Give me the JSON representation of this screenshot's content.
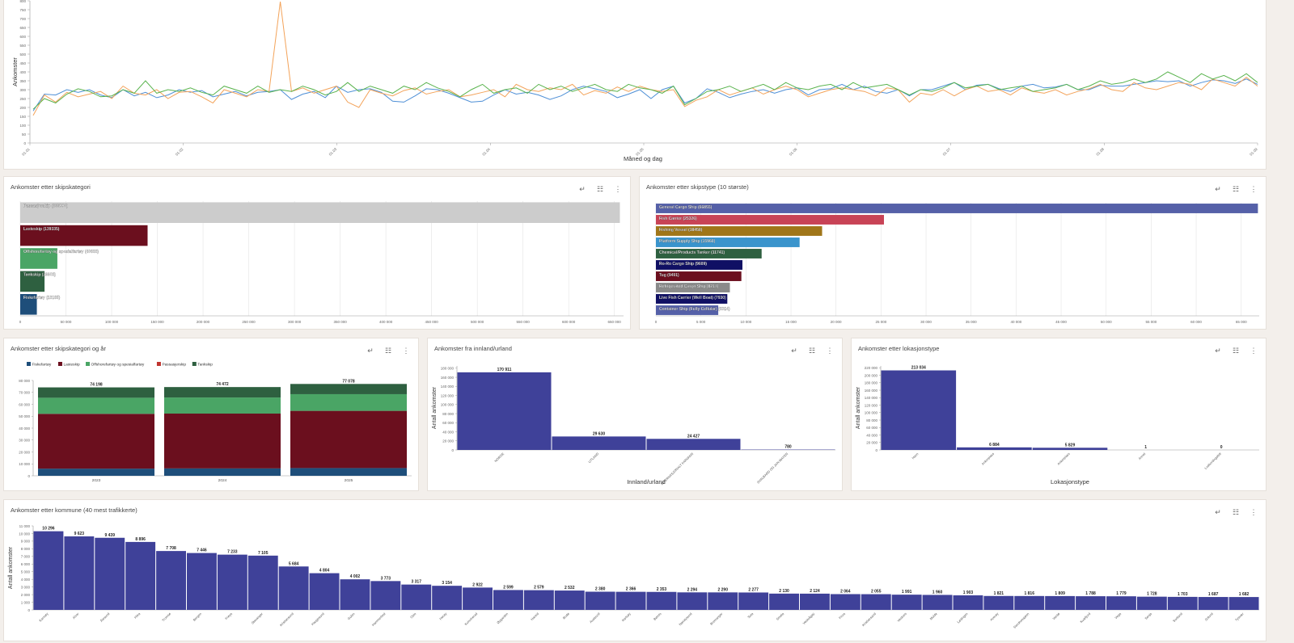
{
  "icons": {
    "drill_up": "↵",
    "list": "☷",
    "more": "⋮"
  },
  "timeseries": {
    "ylabel": "Ankomster",
    "xlabel": "Måned og dag",
    "yticks": [
      0,
      50,
      100,
      150,
      200,
      250,
      300,
      350,
      400,
      450,
      500,
      550,
      600,
      650,
      700,
      750,
      800
    ],
    "xticks": [
      "01.01",
      "01.02",
      "01.03",
      "01.04",
      "01.05",
      "01.06",
      "01.07",
      "01.08",
      "01.09"
    ],
    "colors": [
      "#4e8fd6",
      "#f3a35a",
      "#59b34d"
    ],
    "chart_data": {
      "type": "line",
      "x_range": [
        "01.01",
        "01.09"
      ],
      "ylim": [
        0,
        800
      ],
      "series": [
        {
          "color": "#4e8fd6",
          "values": [
            180,
            275,
            270,
            300,
            285,
            300,
            270,
            255,
            300,
            265,
            285,
            255,
            270,
            300,
            285,
            295,
            260,
            275,
            290,
            265,
            285,
            290,
            300,
            245,
            275,
            290,
            255,
            320,
            285,
            300,
            305,
            285,
            235,
            230,
            265,
            305,
            300,
            280,
            255,
            230,
            235,
            270,
            300,
            275,
            285,
            270,
            245,
            265,
            300,
            320,
            305,
            290,
            255,
            275,
            300,
            250,
            300,
            320,
            225,
            250,
            305,
            285,
            255,
            275,
            290,
            300,
            280,
            300,
            310,
            270,
            300,
            305,
            330,
            300,
            320,
            290,
            280,
            300,
            265,
            300,
            300,
            320,
            340,
            300,
            325,
            330,
            305,
            290,
            320,
            330,
            310,
            315,
            330,
            300,
            300,
            325,
            320,
            320,
            330,
            340,
            350,
            345,
            350,
            320,
            340,
            355,
            350,
            335,
            360,
            330
          ]
        },
        {
          "color": "#f3a35a",
          "values": [
            155,
            270,
            230,
            285,
            260,
            275,
            290,
            250,
            320,
            280,
            270,
            300,
            250,
            285,
            290,
            260,
            225,
            300,
            280,
            260,
            300,
            290,
            795,
            290,
            310,
            280,
            300,
            320,
            230,
            200,
            300,
            280,
            265,
            295,
            310,
            275,
            290,
            300,
            260,
            270,
            285,
            300,
            260,
            330,
            300,
            290,
            310,
            300,
            330,
            270,
            295,
            280,
            315,
            290,
            320,
            300,
            290,
            300,
            205,
            240,
            260,
            300,
            270,
            290,
            310,
            275,
            300,
            320,
            300,
            260,
            280,
            300,
            310,
            300,
            290,
            265,
            310,
            300,
            230,
            280,
            270,
            300,
            265,
            300,
            320,
            290,
            300,
            270,
            310,
            290,
            280,
            300,
            270,
            290,
            305,
            330,
            300,
            290,
            340,
            310,
            300,
            320,
            340,
            330,
            300,
            360,
            340,
            320,
            370,
            320
          ]
        },
        {
          "color": "#59b34d",
          "values": [
            190,
            250,
            225,
            275,
            305,
            290,
            260,
            265,
            300,
            280,
            350,
            280,
            300,
            290,
            310,
            285,
            270,
            320,
            300,
            280,
            320,
            285,
            300,
            290,
            320,
            300,
            270,
            290,
            340,
            290,
            320,
            300,
            280,
            320,
            300,
            340,
            310,
            290,
            260,
            300,
            330,
            280,
            300,
            310,
            280,
            330,
            300,
            320,
            290,
            310,
            330,
            300,
            290,
            330,
            310,
            300,
            280,
            320,
            215,
            250,
            290,
            300,
            320,
            290,
            310,
            330,
            300,
            340,
            310,
            300,
            320,
            330,
            300,
            340,
            310,
            320,
            330,
            300,
            270,
            300,
            290,
            310,
            340,
            310,
            320,
            330,
            300,
            310,
            320,
            290,
            300,
            310,
            330,
            300,
            320,
            350,
            330,
            340,
            360,
            340,
            360,
            400,
            370,
            340,
            390,
            360,
            380,
            350,
            390,
            340
          ]
        }
      ]
    }
  },
  "skipskategori": {
    "title": "Ankomster etter skipskategori",
    "xticks": [
      "0",
      "50 000",
      "100 000",
      "150 000",
      "200 000",
      "250 000",
      "300 000",
      "350 000",
      "400 000",
      "450 000",
      "500 000",
      "550 000",
      "600 000",
      "650 000"
    ],
    "chart_data": {
      "type": "bar",
      "orientation": "horizontal",
      "xlim": [
        0,
        660000
      ],
      "categories": [
        "Passasjerskip",
        "Lasteskip",
        "Offshorefartøy og spesialfartøy",
        "Tankskip",
        "Fiskefartøy"
      ],
      "values": [
        655990,
        139335,
        40633,
        26603,
        18185
      ],
      "labels": [
        "Passasjerskip (655990)",
        "Lasteskip (139335)",
        "Offshorefartøy og spesialfartøy (40633)",
        "Tankskip (26603)",
        "Fiskefartøy (18185)"
      ],
      "colors": [
        "#cccccc",
        "#6b0f1e",
        "#4aa565",
        "#2e6040",
        "#1e4e7a"
      ]
    }
  },
  "skipstype": {
    "title": "Ankomster etter skipstype (10 største)",
    "xticks": [
      "0",
      "5 000",
      "10 000",
      "15 000",
      "20 000",
      "25 000",
      "30 000",
      "35 000",
      "40 000",
      "45 000",
      "50 000",
      "55 000",
      "60 000",
      "65 000"
    ],
    "chart_data": {
      "type": "bar",
      "orientation": "horizontal",
      "xlim": [
        0,
        67000
      ],
      "categories": [
        "General Cargo Ship",
        "Fish Carrier",
        "Fishing Vessel",
        "Platform Supply Ship",
        "Chemical/Products Tanker",
        "Ro-Ro Cargo Ship",
        "Tug",
        "Refrigerated Cargo Ship",
        "Live Fish Carrier (Well Boat)",
        "Container Ship (Fully Cellular)"
      ],
      "values": [
        66855,
        25326,
        18458,
        15960,
        11741,
        9609,
        9491,
        8217,
        7930,
        6924
      ],
      "labels": [
        "General Cargo Ship (66855)",
        "Fish Carrier (25326)",
        "Fishing Vessel (18458)",
        "Platform Supply Ship (15960)",
        "Chemical/Products Tanker (11741)",
        "Ro-Ro Cargo Ship (9609)",
        "Tug (9491)",
        "Refrigerated Cargo Ship (8217)",
        "Live Fish Carrier (Well Boat) (7930)",
        "Container Ship (Fully Cellular) (6924)"
      ],
      "colors": [
        "#5560a8",
        "#c84356",
        "#a07619",
        "#3a94cc",
        "#2e6040",
        "#101064",
        "#6b0f1e",
        "#8a8a8a",
        "#101064",
        "#5560a8"
      ]
    }
  },
  "kategori_aar": {
    "title": "Ankomster etter skipskategori og år",
    "legend": [
      {
        "name": "Fiskefartøy",
        "color": "#1e4e7a"
      },
      {
        "name": "Lasteskip",
        "color": "#6b0f1e"
      },
      {
        "name": "Offshorefartøy og spesialfartøy",
        "color": "#4aa565"
      },
      {
        "name": "Passasjerskip",
        "color": "#c0342f"
      },
      {
        "name": "Tankskip",
        "color": "#2e6040"
      }
    ],
    "yticks": [
      "0",
      "10 000",
      "20 000",
      "30 000",
      "40 000",
      "50 000",
      "60 000",
      "70 000",
      "80 000"
    ],
    "chart_data": {
      "type": "bar",
      "stacked": true,
      "ylim": [
        0,
        80000
      ],
      "categories": [
        "2023",
        "2024",
        "2025"
      ],
      "totals": [
        "74 198",
        "74 472",
        "77 078"
      ],
      "series": [
        {
          "name": "Fiskefartøy",
          "values": [
            6000,
            6200,
            6500
          ]
        },
        {
          "name": "Lasteskip",
          "values": [
            46000,
            46000,
            48000
          ]
        },
        {
          "name": "Passasjerskip",
          "values": [
            0,
            0,
            0
          ]
        },
        {
          "name": "Offshorefartøy og spesialfartøy",
          "values": [
            13500,
            13500,
            14000
          ]
        },
        {
          "name": "Tankskip",
          "values": [
            8698,
            8772,
            8578
          ]
        }
      ]
    }
  },
  "innland": {
    "title": "Ankomster fra innland/urland",
    "ylabel": "Antall ankomster",
    "xlabel": "Innland/urland",
    "yticks": [
      "0",
      "20 000",
      "40 000",
      "60 000",
      "80 000",
      "100 000",
      "120 000",
      "140 000",
      "160 000",
      "180 000"
    ],
    "chart_data": {
      "type": "bar",
      "ylim": [
        0,
        185000
      ],
      "categories": [
        "NORGE",
        "UTLAND",
        "INTERNASJONALT FARVANN",
        "SVALBARD OG JAN MAYEN"
      ],
      "values": [
        170911,
        29630,
        24427,
        780
      ],
      "value_labels": [
        "170 911",
        "29 630",
        "24 427",
        "780"
      ]
    }
  },
  "lokasjon": {
    "title": "Ankomster etter lokasjonstype",
    "ylabel": "Antall ankomster",
    "xlabel": "Lokasjonstype",
    "yticks": [
      "0",
      "20 000",
      "40 000",
      "60 000",
      "80 000",
      "100 000",
      "120 000",
      "140 000",
      "160 000",
      "180 000",
      "200 000",
      "220 000"
    ],
    "chart_data": {
      "type": "bar",
      "ylim": [
        0,
        225000
      ],
      "categories": [
        "Havn",
        "Ankerplass",
        "Ankerplass",
        "Annet",
        "Losbordingsfelt"
      ],
      "values": [
        213034,
        6884,
        5829,
        1,
        0
      ],
      "value_labels": [
        "213 034",
        "6 884",
        "5 829",
        "1",
        "0"
      ]
    }
  },
  "kommune": {
    "title": "Ankomster etter kommune (40 mest trafikkerte)",
    "ylabel": "Antall ankomster",
    "yticks": [
      "0",
      "1 000",
      "2 000",
      "3 000",
      "4 000",
      "5 000",
      "6 000",
      "7 000",
      "8 000",
      "9 000",
      "10 000",
      "11 000"
    ],
    "chart_data": {
      "type": "bar",
      "ylim": [
        0,
        11000
      ],
      "categories": [
        "Karmøy",
        "Alver",
        "Ålesund",
        "Hitra",
        "Tromsø",
        "Bergen",
        "Frøya",
        "Stavanger",
        "Kristiansund",
        "Haugesund",
        "Gulen",
        "Hammerfest",
        "Oslo",
        "Herøy",
        "Kvinnherad",
        "Øygarden",
        "Hareid",
        "Bodø",
        "Austevoll",
        "Karlsøy",
        "Bømlo",
        "Nærøysund",
        "Bremanger",
        "Sula",
        "Smøla",
        "Vestvågøy",
        "Flora",
        "Kristiansand",
        "Vestnes",
        "Molde",
        "Lødingen",
        "Averøy",
        "Sandnessjøen",
        "Vardø",
        "Kvæfjord",
        "Vega",
        "Senja",
        "Sortland",
        "Solund",
        "Tysvær"
      ],
      "values": [
        10296,
        9623,
        9439,
        8896,
        7708,
        7446,
        7233,
        7105,
        5684,
        4804,
        4002,
        3773,
        3317,
        3154,
        2922,
        2599,
        2579,
        2532,
        2380,
        2366,
        2353,
        2294,
        2290,
        2277,
        2130,
        2124,
        2064,
        2055,
        1991,
        1960,
        1903,
        1821,
        1816,
        1809,
        1788,
        1779,
        1728,
        1703,
        1687,
        1682
      ],
      "value_labels": [
        "10 296",
        "9 623",
        "9 439",
        "8 896",
        "7 708",
        "7 446",
        "7 233",
        "7 105",
        "5 684",
        "4 804",
        "4 002",
        "3 773",
        "3 317",
        "3 154",
        "2 922",
        "2 599",
        "2 579",
        "2 532",
        "2 380",
        "2 366",
        "2 353",
        "2 294",
        "2 290",
        "2 277",
        "2 130",
        "2 124",
        "2 064",
        "2 055",
        "1 991",
        "1 960",
        "1 903",
        "1 821",
        "1 816",
        "1 809",
        "1 788",
        "1 779",
        "1 728",
        "1 703",
        "1 687",
        "1 682"
      ]
    }
  }
}
